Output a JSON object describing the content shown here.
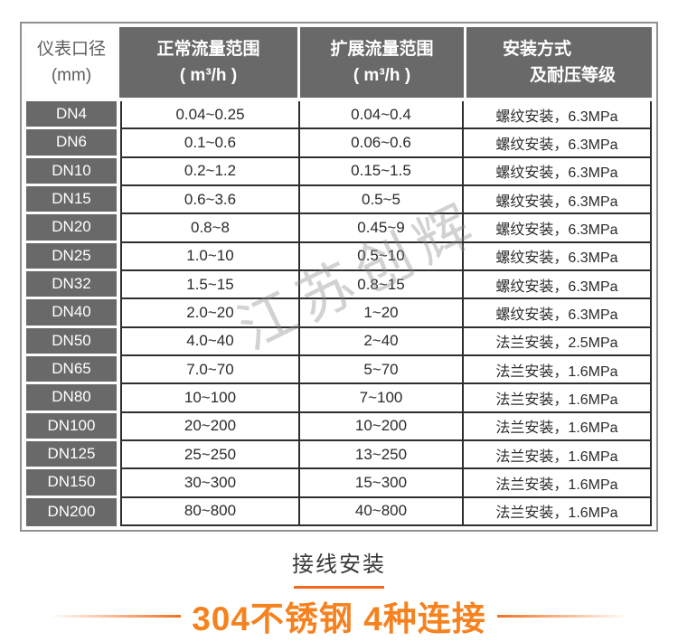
{
  "watermark": {
    "text": "江苏创辉"
  },
  "table": {
    "header": {
      "diameter": {
        "line1": "仪表口径",
        "line2": "(mm)"
      },
      "normal_range": {
        "line1": "正常流量范围",
        "line2": "( m³/h )"
      },
      "extended_range": {
        "line1": "扩展流量范围",
        "line2": "( m³/h )"
      },
      "installation": {
        "line1": "安装方式",
        "line2": "及耐压等级"
      }
    },
    "rows": [
      {
        "dn": "DN4",
        "normal": "0.04~0.25",
        "extended": "0.04~0.4",
        "install": "螺纹安装，6.3MPa"
      },
      {
        "dn": "DN6",
        "normal": "0.1~0.6",
        "extended": "0.06~0.6",
        "install": "螺纹安装，6.3MPa"
      },
      {
        "dn": "DN10",
        "normal": "0.2~1.2",
        "extended": "0.15~1.5",
        "install": "螺纹安装，6.3MPa"
      },
      {
        "dn": "DN15",
        "normal": "0.6~3.6",
        "extended": "0.5~5",
        "install": "螺纹安装，6.3MPa"
      },
      {
        "dn": "DN20",
        "normal": "0.8~8",
        "extended": "0.45~9",
        "install": "螺纹安装，6.3MPa"
      },
      {
        "dn": "DN25",
        "normal": "1.0~10",
        "extended": "0.5~10",
        "install": "螺纹安装，6.3MPa"
      },
      {
        "dn": "DN32",
        "normal": "1.5~15",
        "extended": "0.8~15",
        "install": "螺纹安装，6.3MPa"
      },
      {
        "dn": "DN40",
        "normal": "2.0~20",
        "extended": "1~20",
        "install": "螺纹安装，6.3MPa"
      },
      {
        "dn": "DN50",
        "normal": "4.0~40",
        "extended": "2~40",
        "install": "法兰安装，2.5MPa"
      },
      {
        "dn": "DN65",
        "normal": "7.0~70",
        "extended": "5~70",
        "install": "法兰安装，1.6MPa"
      },
      {
        "dn": "DN80",
        "normal": "10~100",
        "extended": "7~100",
        "install": "法兰安装，1.6MPa"
      },
      {
        "dn": "DN100",
        "normal": "20~200",
        "extended": "10~200",
        "install": "法兰安装，1.6MPa"
      },
      {
        "dn": "DN125",
        "normal": "25~250",
        "extended": "13~250",
        "install": "法兰安装，1.6MPa"
      },
      {
        "dn": "DN150",
        "normal": "30~300",
        "extended": "15~300",
        "install": "法兰安装，1.6MPa"
      },
      {
        "dn": "DN200",
        "normal": "80~800",
        "extended": "40~800",
        "install": "法兰安装，1.6MPa"
      }
    ]
  },
  "footer": {
    "section_label": "接线安装",
    "headline": "304不锈钢 4种连接"
  },
  "colors": {
    "header_gray": "#696969",
    "cell_border_dark": "#2e2e2e",
    "accent_orange": "#f5821f",
    "divider_orange": "#f26722"
  }
}
